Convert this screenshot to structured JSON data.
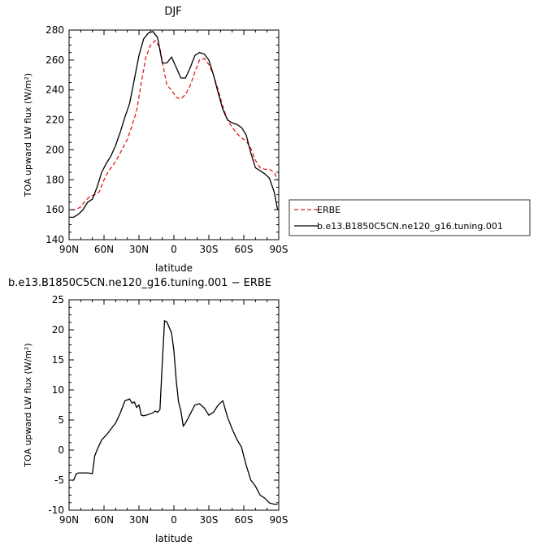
{
  "chart_data": [
    {
      "type": "line",
      "title": "DJF",
      "xlabel": "latitude",
      "ylabel": "TOA upward LW flux (W/m²)",
      "ylim": [
        140,
        280
      ],
      "xlim": [
        -90,
        90
      ],
      "x_ticks": [
        -90,
        -60,
        -30,
        0,
        30,
        60,
        90
      ],
      "x_tick_labels": [
        "90N",
        "60N",
        "30N",
        "0",
        "30S",
        "60S",
        "90S"
      ],
      "y_ticks": [
        140,
        160,
        180,
        200,
        220,
        240,
        260,
        280
      ],
      "y_tick_labels": [
        "140",
        "160",
        "180",
        "200",
        "220",
        "240",
        "260",
        "280"
      ],
      "legend_position": "right",
      "series": [
        {
          "name": "ERBE",
          "color": "#e41a1c",
          "dash": "dashed",
          "x": [
            -88,
            -84,
            -80,
            -76,
            -72,
            -68,
            -64,
            -60,
            -56,
            -52,
            -48,
            -44,
            -40,
            -36,
            -32,
            -28,
            -24,
            -20,
            -16,
            -12,
            -10,
            -6,
            -2,
            2,
            6,
            10,
            14,
            18,
            22,
            26,
            30,
            34,
            38,
            42,
            46,
            50,
            54,
            58,
            62,
            66,
            70,
            74,
            78,
            82,
            86,
            89
          ],
          "values": [
            160,
            160,
            162,
            166,
            169,
            170,
            172,
            180,
            186,
            190,
            195,
            201,
            207,
            216,
            226,
            245,
            262,
            270,
            273,
            268,
            259,
            243,
            240,
            235,
            234,
            237,
            243,
            252,
            260,
            261,
            257,
            250,
            240,
            229,
            220,
            215,
            211,
            208,
            206,
            201,
            193,
            188,
            187,
            187,
            185,
            180
          ]
        },
        {
          "name": "b.e13.B1850C5CN.ne120_g16.tuning.001",
          "color": "#000000",
          "dash": "solid",
          "x": [
            -89,
            -86,
            -82,
            -78,
            -74,
            -70,
            -66,
            -62,
            -58,
            -54,
            -50,
            -46,
            -42,
            -38,
            -34,
            -30,
            -26,
            -22,
            -18,
            -14,
            -10,
            -6,
            -2,
            2,
            6,
            10,
            14,
            18,
            22,
            26,
            30,
            34,
            38,
            42,
            46,
            50,
            54,
            58,
            62,
            66,
            70,
            74,
            78,
            82,
            86,
            89
          ],
          "values": [
            155,
            155,
            157,
            160,
            165,
            167,
            175,
            185,
            191,
            196,
            203,
            212,
            222,
            231,
            247,
            263,
            274,
            278,
            279,
            275,
            258,
            258,
            262,
            255,
            248,
            248,
            255,
            263,
            265,
            264,
            260,
            250,
            238,
            227,
            220,
            218,
            217,
            215,
            210,
            198,
            188,
            186,
            184,
            181,
            172,
            160
          ]
        }
      ]
    },
    {
      "type": "line",
      "title": "b.e13.B1850C5CN.ne120_g16.tuning.001 − ERBE",
      "xlabel": "latitude",
      "ylabel": "TOA upward LW flux (W/m²)",
      "ylim": [
        -10,
        25
      ],
      "xlim": [
        -90,
        90
      ],
      "x_ticks": [
        -90,
        -60,
        -30,
        0,
        30,
        60,
        90
      ],
      "x_tick_labels": [
        "90N",
        "60N",
        "30N",
        "0",
        "30S",
        "60S",
        "90S"
      ],
      "y_ticks": [
        -10,
        -5,
        0,
        5,
        10,
        15,
        20,
        25
      ],
      "y_tick_labels": [
        "-10",
        "-5",
        "0",
        "5",
        "10",
        "15",
        "20",
        "25"
      ],
      "series": [
        {
          "name": "",
          "color": "#000000",
          "dash": "solid",
          "x": [
            -88,
            -86,
            -84,
            -82,
            -78,
            -74,
            -70,
            -68,
            -66,
            -62,
            -58,
            -54,
            -50,
            -46,
            -42,
            -38,
            -36,
            -34,
            -32,
            -30,
            -28,
            -26,
            -22,
            -18,
            -16,
            -14,
            -12,
            -10,
            -8,
            -6,
            -2,
            0,
            2,
            4,
            6,
            8,
            10,
            14,
            18,
            22,
            26,
            30,
            34,
            38,
            42,
            46,
            50,
            54,
            58,
            62,
            66,
            70,
            74,
            78,
            82,
            86,
            89
          ],
          "values": [
            -5,
            -5,
            -4,
            -3.8,
            -3.8,
            -3.8,
            -3.9,
            -1,
            0,
            1.7,
            2.5,
            3.5,
            4.5,
            6.2,
            8.2,
            8.5,
            7.8,
            8.0,
            7.1,
            7.5,
            5.8,
            5.7,
            5.9,
            6.2,
            6.5,
            6.3,
            6.7,
            14.5,
            21.5,
            21.3,
            19.5,
            16.5,
            11.5,
            8.0,
            6.5,
            4.0,
            4.5,
            6.0,
            7.5,
            7.7,
            7.0,
            5.8,
            6.3,
            7.5,
            8.2,
            5.5,
            3.5,
            1.8,
            0.5,
            -2.5,
            -5.0,
            -6.0,
            -7.5,
            -8.0,
            -8.8,
            -9.0,
            -9.0
          ]
        }
      ]
    }
  ]
}
